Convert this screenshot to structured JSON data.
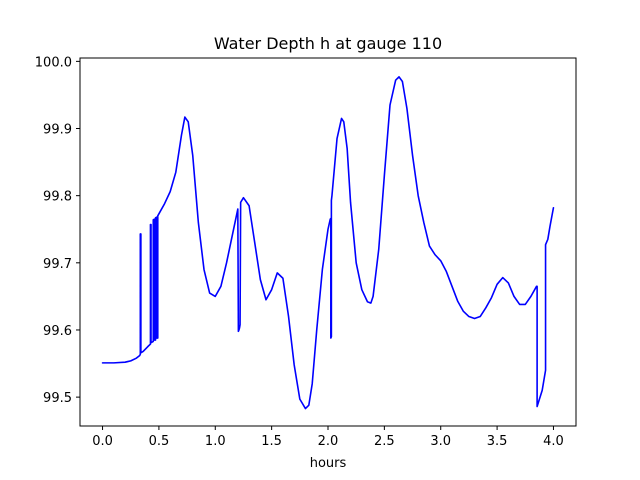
{
  "chart_data": {
    "type": "line",
    "title": "Water Depth h at gauge 110",
    "xlabel": "hours",
    "ylabel": "",
    "xlim": [
      -0.2,
      4.2
    ],
    "ylim": [
      99.457,
      100.005
    ],
    "grid": false,
    "x_ticks": [
      {
        "value": 0.0,
        "label": "0.0"
      },
      {
        "value": 0.5,
        "label": "0.5"
      },
      {
        "value": 1.0,
        "label": "1.0"
      },
      {
        "value": 1.5,
        "label": "1.5"
      },
      {
        "value": 2.0,
        "label": "2.0"
      },
      {
        "value": 2.5,
        "label": "2.5"
      },
      {
        "value": 3.0,
        "label": "3.0"
      },
      {
        "value": 3.5,
        "label": "3.5"
      },
      {
        "value": 4.0,
        "label": "4.0"
      }
    ],
    "y_ticks": [
      {
        "value": 99.5,
        "label": "99.5"
      },
      {
        "value": 99.6,
        "label": "99.6"
      },
      {
        "value": 99.7,
        "label": "99.7"
      },
      {
        "value": 99.8,
        "label": "99.8"
      },
      {
        "value": 99.9,
        "label": "99.9"
      },
      {
        "value": 100.0,
        "label": "100.0"
      }
    ],
    "series": [
      {
        "color": "#0000ff",
        "x": [
          0.0,
          0.1,
          0.2,
          0.25,
          0.3,
          0.33,
          0.335,
          0.335,
          0.34,
          0.34,
          0.36,
          0.4,
          0.425,
          0.425,
          0.43,
          0.43,
          0.45,
          0.45,
          0.46,
          0.46,
          0.47,
          0.47,
          0.48,
          0.48,
          0.49,
          0.49,
          0.5,
          0.55,
          0.6,
          0.65,
          0.7,
          0.73,
          0.76,
          0.8,
          0.85,
          0.9,
          0.95,
          1.0,
          1.05,
          1.1,
          1.15,
          1.2,
          1.205,
          1.21,
          1.215,
          1.22,
          1.225,
          1.25,
          1.3,
          1.35,
          1.4,
          1.45,
          1.5,
          1.55,
          1.6,
          1.65,
          1.7,
          1.75,
          1.8,
          1.83,
          1.86,
          1.9,
          1.95,
          2.0,
          2.02,
          2.025,
          2.025,
          2.03,
          2.03,
          2.035,
          2.08,
          2.12,
          2.14,
          2.17,
          2.2,
          2.25,
          2.3,
          2.35,
          2.38,
          2.4,
          2.45,
          2.5,
          2.55,
          2.6,
          2.63,
          2.66,
          2.7,
          2.75,
          2.8,
          2.85,
          2.9,
          2.95,
          3.0,
          3.05,
          3.1,
          3.15,
          3.2,
          3.25,
          3.3,
          3.35,
          3.4,
          3.45,
          3.5,
          3.55,
          3.6,
          3.65,
          3.7,
          3.75,
          3.8,
          3.85,
          3.855,
          3.855,
          3.9,
          3.93,
          3.93,
          3.95,
          3.97,
          4.0
        ],
        "y": [
          99.551,
          99.551,
          99.552,
          99.554,
          99.558,
          99.562,
          99.564,
          99.743,
          99.743,
          99.566,
          99.568,
          99.575,
          99.579,
          99.757,
          99.757,
          99.581,
          99.583,
          99.764,
          99.765,
          99.585,
          99.585,
          99.767,
          99.768,
          99.588,
          99.588,
          99.77,
          99.773,
          99.788,
          99.806,
          99.835,
          99.89,
          99.917,
          99.91,
          99.86,
          99.76,
          99.69,
          99.655,
          99.65,
          99.665,
          99.7,
          99.74,
          99.78,
          99.598,
          99.6,
          99.603,
          99.608,
          99.79,
          99.797,
          99.785,
          99.73,
          99.675,
          99.645,
          99.66,
          99.685,
          99.677,
          99.62,
          99.548,
          99.497,
          99.483,
          99.488,
          99.52,
          99.6,
          99.69,
          99.75,
          99.765,
          99.766,
          99.588,
          99.59,
          99.793,
          99.8,
          99.885,
          99.915,
          99.91,
          99.87,
          99.79,
          99.7,
          99.66,
          99.642,
          99.64,
          99.65,
          99.72,
          99.83,
          99.935,
          99.972,
          99.977,
          99.97,
          99.93,
          99.86,
          99.8,
          99.76,
          99.725,
          99.712,
          99.703,
          99.687,
          99.665,
          99.643,
          99.628,
          99.62,
          99.617,
          99.62,
          99.633,
          99.648,
          99.668,
          99.678,
          99.67,
          99.65,
          99.638,
          99.638,
          99.65,
          99.665,
          99.665,
          99.486,
          99.51,
          99.54,
          99.727,
          99.735,
          99.755,
          99.782
        ]
      }
    ]
  }
}
